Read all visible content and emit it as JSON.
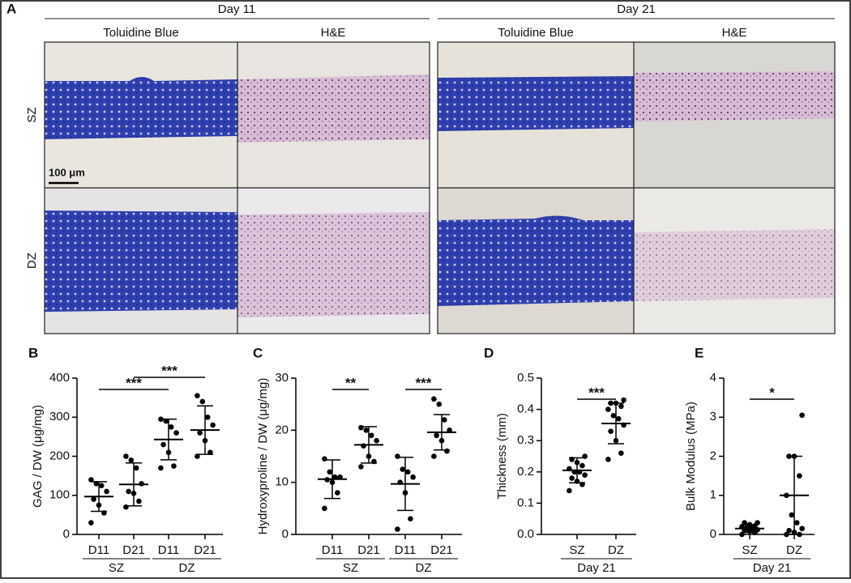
{
  "panel_a": {
    "label": "A",
    "days": [
      {
        "title": "Day 11",
        "stains": [
          "Toluidine Blue",
          "H&E"
        ]
      },
      {
        "title": "Day 21",
        "stains": [
          "Toluidine Blue",
          "H&E"
        ]
      }
    ],
    "rows": [
      "SZ",
      "DZ"
    ],
    "scale_bar": "100 μm"
  },
  "chart_data": [
    {
      "type": "dotplot",
      "panel": "B",
      "ylabel": "GAG / DW (μg/mg)",
      "color": "#000000",
      "categories": [
        "D11",
        "D21",
        "D11",
        "D21"
      ],
      "category_groups": [
        {
          "label": "SZ",
          "span": [
            0,
            1
          ]
        },
        {
          "label": "DZ",
          "span": [
            2,
            3
          ]
        }
      ],
      "groups": [
        {
          "values": [
            30,
            55,
            75,
            90,
            110,
            125,
            130,
            140
          ],
          "mean": 97,
          "sd": 38
        },
        {
          "values": [
            70,
            85,
            105,
            110,
            130,
            170,
            190,
            200
          ],
          "mean": 128,
          "sd": 55
        },
        {
          "values": [
            170,
            175,
            210,
            230,
            260,
            275,
            290,
            295
          ],
          "mean": 243,
          "sd": 52
        },
        {
          "values": [
            200,
            210,
            240,
            260,
            280,
            300,
            340,
            355
          ],
          "mean": 267,
          "sd": 62
        }
      ],
      "ylim": [
        0,
        400
      ],
      "yticks": [
        0,
        100,
        200,
        300,
        400
      ],
      "comparisons": [
        {
          "label": "***",
          "between": [
            0,
            2
          ]
        },
        {
          "label": "***",
          "between": [
            1,
            3
          ]
        }
      ]
    },
    {
      "type": "dotplot",
      "panel": "C",
      "ylabel": "Hydroxyproline / DW (μg/mg)",
      "color": "#000000",
      "categories": [
        "D11",
        "D21",
        "D11",
        "D21"
      ],
      "category_groups": [
        {
          "label": "SZ",
          "span": [
            0,
            1
          ]
        },
        {
          "label": "DZ",
          "span": [
            2,
            3
          ]
        }
      ],
      "groups": [
        {
          "values": [
            5,
            8,
            10,
            10.5,
            11,
            11,
            12,
            14.5
          ],
          "mean": 10.6,
          "sd": 3.7
        },
        {
          "values": [
            13,
            14,
            15,
            17,
            18,
            19,
            20,
            20.5
          ],
          "mean": 17.2,
          "sd": 3.5
        },
        {
          "values": [
            1,
            3,
            8,
            10,
            11,
            12,
            12.5,
            15
          ],
          "mean": 9.7,
          "sd": 5.1
        },
        {
          "values": [
            15,
            16,
            18,
            19,
            20,
            22,
            25,
            26
          ],
          "mean": 19.6,
          "sd": 3.4
        }
      ],
      "ylim": [
        0,
        30
      ],
      "yticks": [
        0,
        10,
        20,
        30
      ],
      "comparisons": [
        {
          "label": "**",
          "between": [
            0,
            1
          ]
        },
        {
          "label": "***",
          "between": [
            2,
            3
          ]
        }
      ]
    },
    {
      "type": "dotplot",
      "panel": "D",
      "ylabel": "Thickness (mm)",
      "color": "#000000",
      "categories": [
        "SZ",
        "DZ"
      ],
      "category_groups": [
        {
          "label": "Day 21",
          "span": [
            0,
            1
          ]
        }
      ],
      "groups": [
        {
          "values": [
            0.14,
            0.16,
            0.17,
            0.18,
            0.19,
            0.2,
            0.2,
            0.21,
            0.22,
            0.23,
            0.24,
            0.25
          ],
          "mean": 0.205,
          "sd": 0.04
        },
        {
          "values": [
            0.24,
            0.26,
            0.3,
            0.33,
            0.35,
            0.37,
            0.38,
            0.4,
            0.41,
            0.42,
            0.42,
            0.43
          ],
          "mean": 0.355,
          "sd": 0.065
        }
      ],
      "ylim": [
        0,
        0.5
      ],
      "yticks": [
        {
          "value": 0,
          "label": "0.0"
        },
        0.1,
        0.2,
        0.3,
        0.4,
        0.5
      ],
      "comparisons": [
        {
          "label": "***",
          "between": [
            0,
            1
          ]
        }
      ]
    },
    {
      "type": "dotplot",
      "panel": "E",
      "ylabel": "Bulk Modulus (MPa)",
      "color": "#000000",
      "categories": [
        "SZ",
        "DZ"
      ],
      "category_groups": [
        {
          "label": "Day 21",
          "span": [
            0,
            1
          ]
        }
      ],
      "groups": [
        {
          "values": [
            0,
            0.05,
            0.08,
            0.1,
            0.12,
            0.15,
            0.18,
            0.2,
            0.22,
            0.25,
            0.3,
            0.3
          ],
          "mean": 0.15,
          "sd": 0.1
        },
        {
          "values": [
            0,
            0,
            0.05,
            0.1,
            0.15,
            0.3,
            0.5,
            1.0,
            1.5,
            2.0,
            2.0,
            3.05
          ],
          "mean": 1.0,
          "sd": 1.0
        }
      ],
      "ylim": [
        0,
        4
      ],
      "yticks": [
        0,
        1,
        2,
        3,
        4
      ],
      "comparisons": [
        {
          "label": "*",
          "between": [
            0,
            1
          ]
        }
      ]
    }
  ]
}
